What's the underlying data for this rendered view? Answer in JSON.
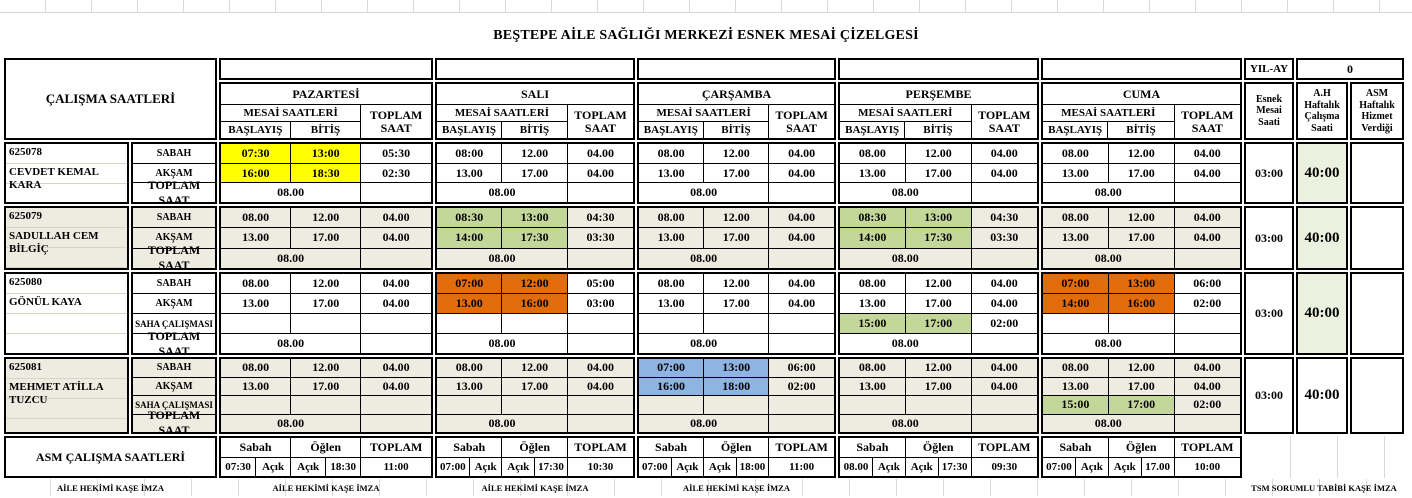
{
  "title": "BEŞTEPE AİLE SAĞLIĞI MERKEZİ ESNEK MESAİ ÇİZELGESİ",
  "header": {
    "calisma_saatleri": "ÇALIŞMA SAATLERİ",
    "mesai_saatleri": "MESAİ SAATLERİ",
    "toplam_saat": "TOPLAM SAAT",
    "baslayis": "BAŞLAYIŞ",
    "bitis": "BİTİŞ",
    "yil_ay": "YIL-AY",
    "yil_ay_value": "0",
    "esnek": "Esnek Mesai Saati",
    "ah": "A.H Haftalık Çalışma Saati",
    "asm": "ASM Haftalık Hizmet Verdiği",
    "days": [
      "PAZARTESİ",
      "SALI",
      "ÇARŞAMBA",
      "PERŞEMBE",
      "CUMA"
    ]
  },
  "row_labels": {
    "sabah": "SABAH",
    "aksam": "AKŞAM",
    "saha": "SAHA ÇALIŞMASI",
    "toplam": "TOPLAM SAAT"
  },
  "colors": {
    "yellow": "#FFFF00",
    "green": "#C4D79B",
    "orange": "#E26B0A",
    "blue": "#8DB4E2",
    "beige": "#EEECE1",
    "pale": "#EBF1DE"
  },
  "employees": [
    {
      "id": "625078",
      "name": "CEVDET KEMAL KARA",
      "has_saha": false,
      "esnek": "03:00",
      "haftalik": "40:00",
      "haftalik_bg": "pale",
      "days": [
        {
          "sabah": [
            "07:30",
            "13:00",
            "05:30"
          ],
          "sabah_color": "yellow",
          "aksam": [
            "16:00",
            "18:30",
            "02:30"
          ],
          "aksam_color": "yellow",
          "toplam": "08.00"
        },
        {
          "sabah": [
            "08:00",
            "12.00",
            "04.00"
          ],
          "aksam": [
            "13.00",
            "17.00",
            "04.00"
          ],
          "toplam": "08.00"
        },
        {
          "sabah": [
            "08.00",
            "12.00",
            "04.00"
          ],
          "aksam": [
            "13.00",
            "17.00",
            "04.00"
          ],
          "toplam": "08.00"
        },
        {
          "sabah": [
            "08.00",
            "12.00",
            "04.00"
          ],
          "aksam": [
            "13.00",
            "17.00",
            "04.00"
          ],
          "toplam": "08.00"
        },
        {
          "sabah": [
            "08.00",
            "12.00",
            "04.00"
          ],
          "aksam": [
            "13.00",
            "17.00",
            "04.00"
          ],
          "toplam": "08.00"
        }
      ]
    },
    {
      "id": "625079",
      "name": "SADULLAH CEM BİLGİÇ",
      "has_saha": false,
      "esnek": "03:00",
      "haftalik": "40:00",
      "haftalik_bg": "pale",
      "days": [
        {
          "sabah": [
            "08.00",
            "12.00",
            "04.00"
          ],
          "aksam": [
            "13.00",
            "17.00",
            "04.00"
          ],
          "toplam": "08.00"
        },
        {
          "sabah": [
            "08:30",
            "13:00",
            "04:30"
          ],
          "sabah_color": "green",
          "aksam": [
            "14:00",
            "17:30",
            "03:30"
          ],
          "aksam_color": "green",
          "toplam": "08.00"
        },
        {
          "sabah": [
            "08.00",
            "12.00",
            "04.00"
          ],
          "aksam": [
            "13.00",
            "17.00",
            "04.00"
          ],
          "toplam": "08.00"
        },
        {
          "sabah": [
            "08:30",
            "13:00",
            "04:30"
          ],
          "sabah_color": "green",
          "aksam": [
            "14:00",
            "17:30",
            "03:30"
          ],
          "aksam_color": "green",
          "toplam": "08.00"
        },
        {
          "sabah": [
            "08.00",
            "12.00",
            "04.00"
          ],
          "aksam": [
            "13.00",
            "17.00",
            "04.00"
          ],
          "toplam": "08.00"
        }
      ]
    },
    {
      "id": "625080",
      "name": "GÖNÜL KAYA",
      "has_saha": true,
      "esnek": "03:00",
      "haftalik": "40:00",
      "haftalik_bg": "pale",
      "days": [
        {
          "sabah": [
            "08.00",
            "12.00",
            "04.00"
          ],
          "aksam": [
            "13.00",
            "17.00",
            "04.00"
          ],
          "saha": [
            "",
            "",
            ""
          ],
          "toplam": "08.00"
        },
        {
          "sabah": [
            "07:00",
            "12:00",
            "05:00"
          ],
          "sabah_color": "orange",
          "aksam": [
            "13.00",
            "16:00",
            "03:00"
          ],
          "aksam_color": "orange",
          "saha": [
            "",
            "",
            ""
          ],
          "toplam": "08.00"
        },
        {
          "sabah": [
            "08.00",
            "12.00",
            "04.00"
          ],
          "aksam": [
            "13.00",
            "17.00",
            "04.00"
          ],
          "saha": [
            "",
            "",
            ""
          ],
          "toplam": "08.00"
        },
        {
          "sabah": [
            "08.00",
            "12.00",
            "04.00"
          ],
          "aksam": [
            "13.00",
            "17.00",
            "04.00"
          ],
          "saha": [
            "15:00",
            "17:00",
            "02:00"
          ],
          "saha_color": "green",
          "toplam": "08.00"
        },
        {
          "sabah": [
            "07:00",
            "13:00",
            "06:00"
          ],
          "sabah_color": "orange",
          "aksam": [
            "14:00",
            "16:00",
            "02:00"
          ],
          "aksam_color": "orange",
          "saha": [
            "",
            "",
            ""
          ],
          "toplam": "08.00"
        }
      ]
    },
    {
      "id": "625081",
      "name": "MEHMET ATİLLA TUZCU",
      "has_saha": true,
      "esnek": "03:00",
      "haftalik": "40:00",
      "haftalik_bg": "",
      "days": [
        {
          "sabah": [
            "08.00",
            "12.00",
            "04.00"
          ],
          "aksam": [
            "13.00",
            "17.00",
            "04.00"
          ],
          "saha": [
            "",
            "",
            ""
          ],
          "toplam": "08.00"
        },
        {
          "sabah": [
            "08.00",
            "12.00",
            "04.00"
          ],
          "aksam": [
            "13.00",
            "17.00",
            "04.00"
          ],
          "saha": [
            "",
            "",
            ""
          ],
          "toplam": "08.00"
        },
        {
          "sabah": [
            "07:00",
            "13:00",
            "06:00"
          ],
          "sabah_color": "blue",
          "aksam": [
            "16:00",
            "18:00",
            "02:00"
          ],
          "aksam_color": "blue",
          "saha": [
            "",
            "",
            ""
          ],
          "toplam": "08.00"
        },
        {
          "sabah": [
            "08.00",
            "12.00",
            "04.00"
          ],
          "aksam": [
            "13.00",
            "17.00",
            "04.00"
          ],
          "saha": [
            "",
            "",
            ""
          ],
          "toplam": "08.00"
        },
        {
          "sabah": [
            "08.00",
            "12.00",
            "04.00"
          ],
          "aksam": [
            "13.00",
            "17.00",
            "04.00"
          ],
          "saha": [
            "15:00",
            "17:00",
            "02:00"
          ],
          "saha_color": "green",
          "toplam": "08.00"
        }
      ]
    }
  ],
  "asm_section": {
    "label": "ASM ÇALIŞMA SAATLERİ",
    "col_headers": [
      "Sabah",
      "Öğlen",
      "TOPLAM"
    ],
    "days": [
      [
        "07:30",
        "Açık",
        "Açık",
        "18:30",
        "11:00"
      ],
      [
        "07:00",
        "Açık",
        "Açık",
        "17:30",
        "10:30"
      ],
      [
        "07:00",
        "Açık",
        "Açık",
        "18:00",
        "11:00"
      ],
      [
        "08.00",
        "Açık",
        "Açık",
        "17:30",
        "09:30"
      ],
      [
        "07:00",
        "Açık",
        "Açık",
        "17.00",
        "10:00"
      ]
    ]
  },
  "footer": {
    "aile_hekimi": "AİLE HEKİMİ KAŞE İMZA",
    "tsm": "TSM SORUMLU TABİBİ KAŞE İMZA"
  }
}
